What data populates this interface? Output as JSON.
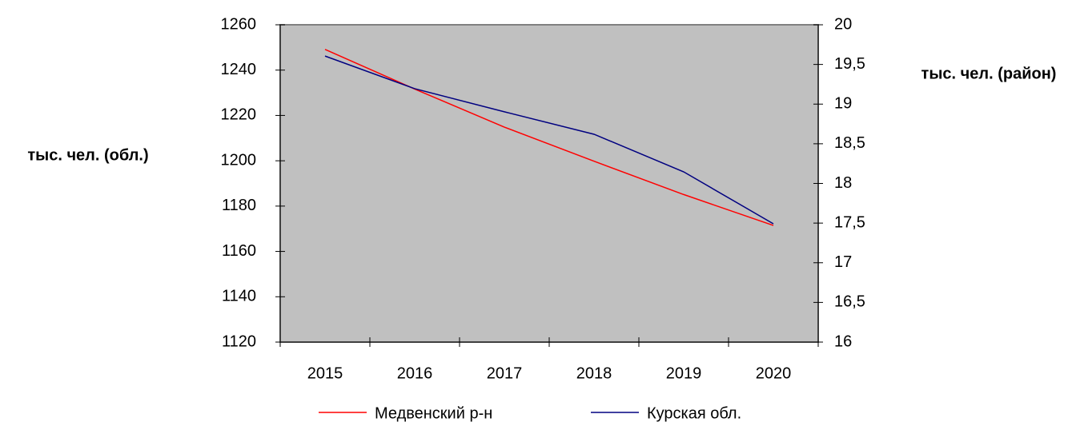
{
  "chart_data": {
    "type": "line",
    "y_label": "тыс. чел. (обл.)",
    "y2_label": "тыс. чел. (район)",
    "categories": [
      "2015",
      "2016",
      "2017",
      "2018",
      "2019",
      "2020"
    ],
    "series": [
      {
        "name": "Медвенский р-н",
        "color": "#ff0000",
        "axis": "y2",
        "values": [
          19.69,
          19.19,
          18.71,
          18.28,
          17.86,
          17.47
        ]
      },
      {
        "name": "Курская обл.",
        "color": "#000080",
        "values": [
          1246.2,
          1231.8,
          1221.6,
          1211.7,
          1195.1,
          1172.2
        ]
      }
    ],
    "ylim": [
      1120,
      1260
    ],
    "yticks": [
      1120,
      1140,
      1160,
      1180,
      1200,
      1220,
      1240,
      1260
    ],
    "y2lim": [
      16,
      20
    ],
    "y2ticks": [
      16,
      {
        "value": 16.5,
        "label": "16,5"
      },
      17,
      {
        "value": 17.5,
        "label": "17,5"
      },
      18,
      {
        "value": 18.5,
        "label": "18,5"
      },
      19,
      {
        "value": 19.5,
        "label": "19,5"
      },
      20
    ],
    "plot_background": "#c0c0c0"
  }
}
